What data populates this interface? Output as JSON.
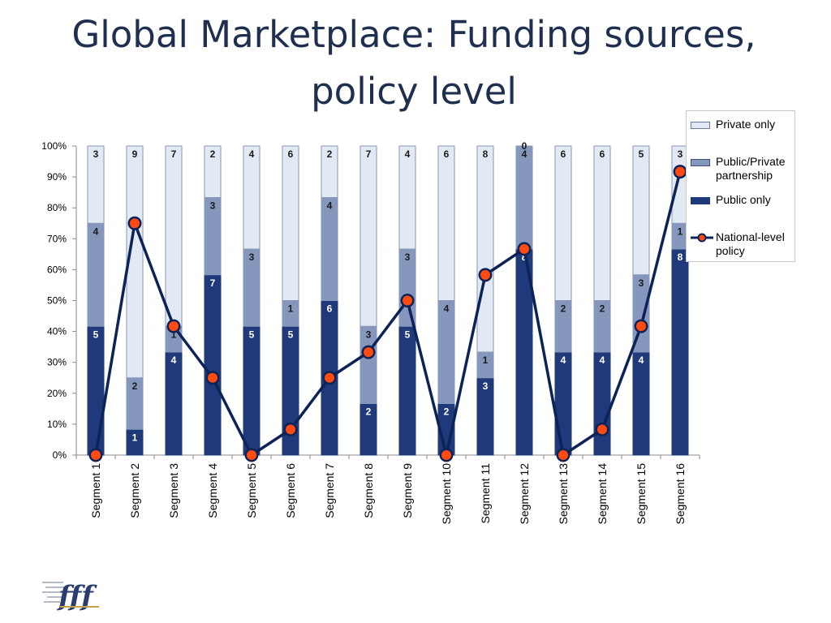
{
  "title": "Global Marketplace: Funding sources, policy level",
  "colors": {
    "private": "#E3E9F3",
    "public_private": "#8597BD",
    "public": "#1F3A7A",
    "line": "#0D2357",
    "marker": "#FF4A12",
    "title": "#1F2F4F"
  },
  "legend": {
    "private": "Private only",
    "public_private": "Public/Private partnership",
    "public": "Public only",
    "line": "National-level policy"
  },
  "chart_data": {
    "type": "bar",
    "stacked": "percent",
    "categories": [
      "Segment 1",
      "Segment 2",
      "Segment 3",
      "Segment 4",
      "Segment 5",
      "Segment 6",
      "Segment 7",
      "Segment 8",
      "Segment 9",
      "Segment 10",
      "Segment 11",
      "Segment 12",
      "Segment 13",
      "Segment 14",
      "Segment 15",
      "Segment 16"
    ],
    "series": [
      {
        "name": "Public only",
        "values": [
          5,
          1,
          4,
          7,
          5,
          5,
          6,
          2,
          5,
          2,
          3,
          8,
          4,
          4,
          4,
          8
        ]
      },
      {
        "name": "Public/Private partnership",
        "values": [
          4,
          2,
          1,
          3,
          3,
          1,
          4,
          3,
          3,
          4,
          1,
          4,
          2,
          2,
          3,
          1
        ]
      },
      {
        "name": "Private only",
        "values": [
          3,
          9,
          7,
          2,
          4,
          6,
          2,
          7,
          4,
          6,
          8,
          0,
          6,
          6,
          5,
          3
        ]
      }
    ],
    "line_series": {
      "name": "National-level policy",
      "values": [
        0,
        75,
        41.7,
        25,
        0,
        8.3,
        25,
        33.3,
        50,
        0,
        58.3,
        66.7,
        0,
        8.3,
        41.7,
        91.7
      ]
    },
    "ylim": [
      0,
      100
    ],
    "yticks": [
      "0%",
      "10%",
      "20%",
      "30%",
      "40%",
      "50%",
      "60%",
      "70%",
      "80%",
      "90%",
      "100%"
    ],
    "legend_position": "right",
    "grid": false
  }
}
